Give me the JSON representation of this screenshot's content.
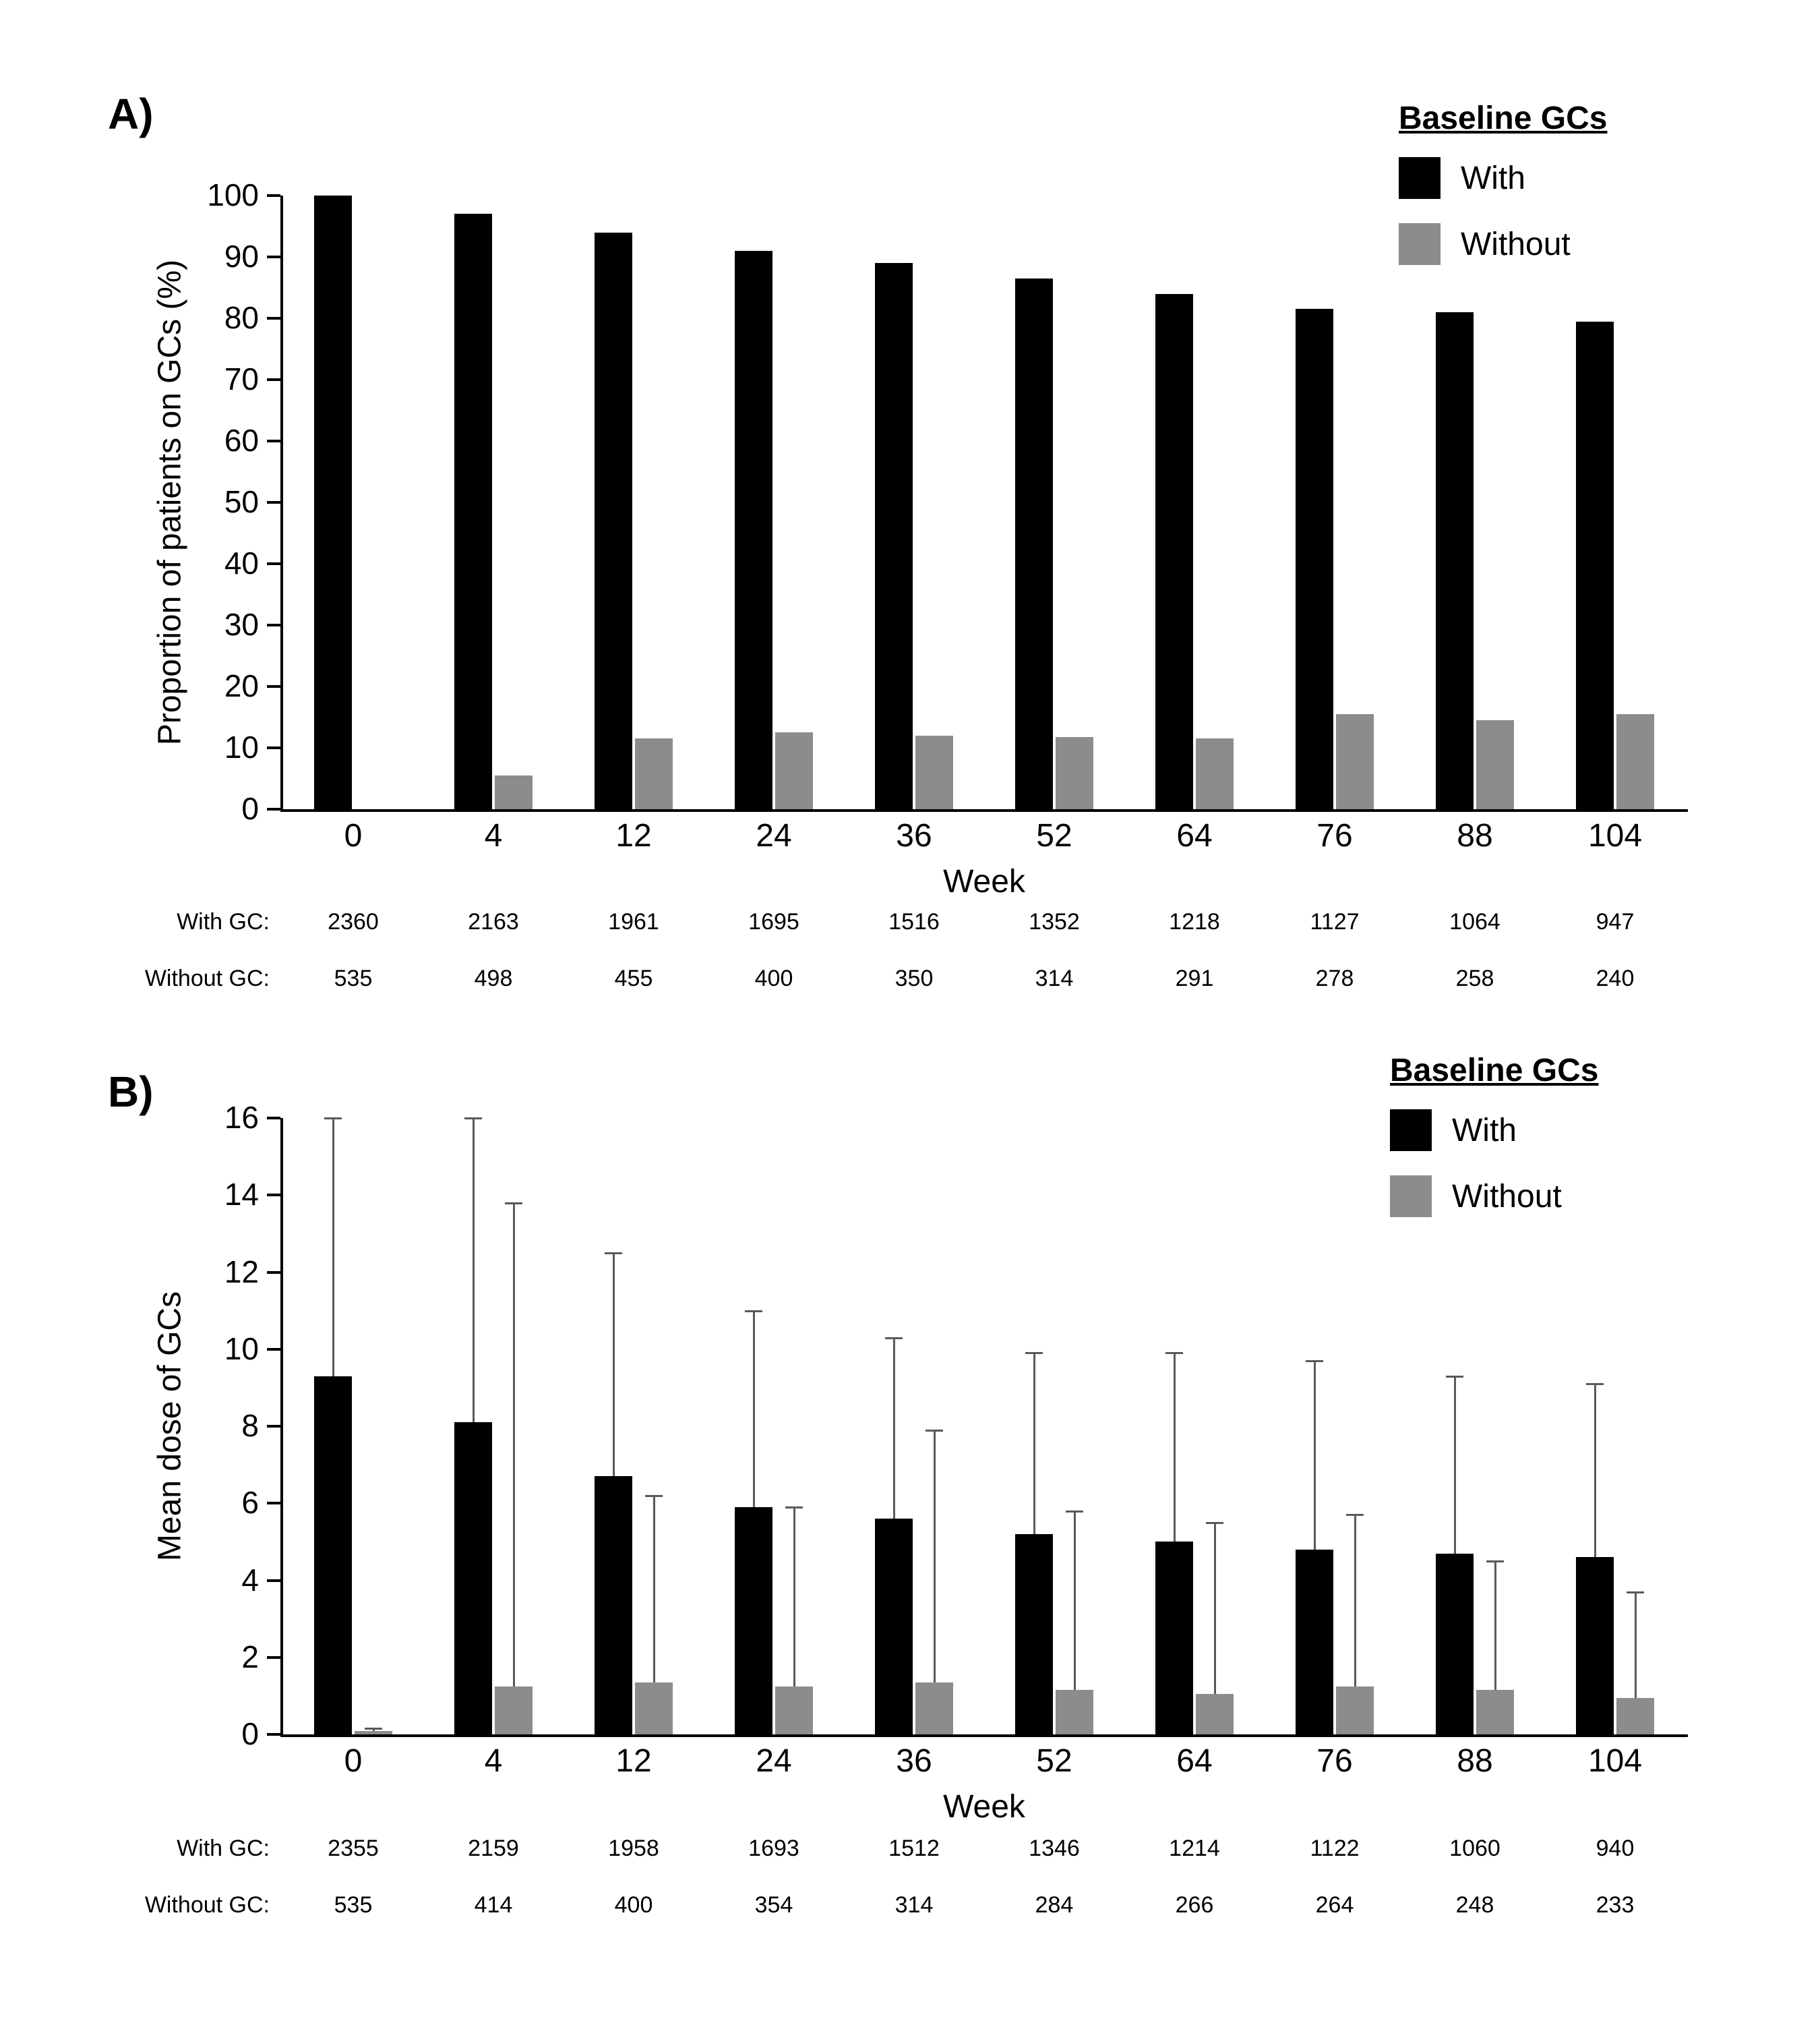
{
  "figure": {
    "background": "#ffffff"
  },
  "panels": [
    {
      "label": "A)"
    },
    {
      "label": "B)"
    }
  ],
  "legend": {
    "title": "Baseline GCs",
    "items": [
      {
        "label": "With",
        "color": "#000000"
      },
      {
        "label": "Without",
        "color": "#8c8c8c"
      }
    ]
  },
  "chart_data": [
    {
      "type": "bar",
      "panel": "A",
      "xlabel": "Week",
      "ylabel": "Proportion of patients on GCs (%)",
      "ylim": [
        0,
        100
      ],
      "ytick_step": 10,
      "grid": false,
      "legend_position": "top-right",
      "categories": [
        "0",
        "4",
        "12",
        "24",
        "36",
        "52",
        "64",
        "76",
        "88",
        "104"
      ],
      "series": [
        {
          "name": "With",
          "color": "#000000",
          "values": [
            100,
            97,
            94,
            91,
            89,
            86.5,
            84,
            81.5,
            81,
            79.5
          ]
        },
        {
          "name": "Without",
          "color": "#8c8c8c",
          "values": [
            0,
            5.5,
            11.5,
            12.5,
            12,
            11.8,
            11.5,
            15.5,
            14.5,
            15.5
          ]
        }
      ],
      "counts_table": {
        "rows": [
          {
            "label": "With GC:",
            "values": [
              "2360",
              "2163",
              "1961",
              "1695",
              "1516",
              "1352",
              "1218",
              "1127",
              "1064",
              "947"
            ]
          },
          {
            "label": "Without GC:",
            "values": [
              "535",
              "498",
              "455",
              "400",
              "350",
              "314",
              "291",
              "278",
              "258",
              "240"
            ]
          }
        ]
      }
    },
    {
      "type": "bar",
      "panel": "B",
      "xlabel": "Week",
      "ylabel": "Mean dose of GCs",
      "ylim": [
        0,
        16
      ],
      "ytick_step": 2,
      "grid": false,
      "legend_position": "top-right",
      "categories": [
        "0",
        "4",
        "12",
        "24",
        "36",
        "52",
        "64",
        "76",
        "88",
        "104"
      ],
      "series": [
        {
          "name": "With",
          "color": "#000000",
          "values": [
            9.3,
            8.1,
            6.7,
            5.9,
            5.6,
            5.2,
            5.0,
            4.8,
            4.7,
            4.6
          ],
          "error_top": [
            16,
            16,
            12.5,
            11.0,
            10.3,
            9.9,
            9.9,
            9.7,
            9.3,
            9.1
          ]
        },
        {
          "name": "Without",
          "color": "#8c8c8c",
          "values": [
            0.08,
            1.25,
            1.35,
            1.25,
            1.35,
            1.15,
            1.05,
            1.25,
            1.15,
            0.95
          ],
          "error_top": [
            0.15,
            13.8,
            6.2,
            5.9,
            7.9,
            5.8,
            5.5,
            5.7,
            4.5,
            3.7
          ]
        }
      ],
      "counts_table": {
        "rows": [
          {
            "label": "With GC:",
            "values": [
              "2355",
              "2159",
              "1958",
              "1693",
              "1512",
              "1346",
              "1214",
              "1122",
              "1060",
              "940"
            ]
          },
          {
            "label": "Without GC:",
            "values": [
              "535",
              "414",
              "400",
              "354",
              "314",
              "284",
              "266",
              "264",
              "248",
              "233"
            ]
          }
        ]
      }
    }
  ]
}
